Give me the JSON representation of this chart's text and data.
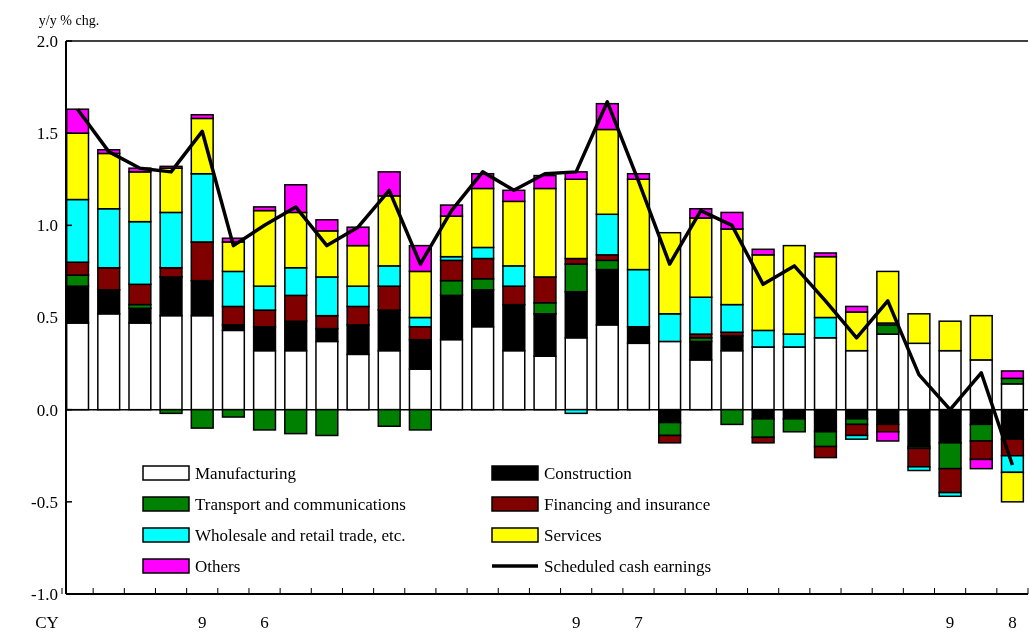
{
  "chart_data": {
    "type": "bar",
    "stacked": true,
    "ylabel": "y/y % chg.",
    "categories": [
      null,
      null,
      null,
      null,
      "9",
      null,
      "6",
      null,
      null,
      null,
      null,
      null,
      null,
      null,
      null,
      null,
      "9",
      null,
      "7",
      null,
      null,
      null,
      null,
      null,
      null,
      null,
      null,
      null,
      "9",
      null,
      "8"
    ],
    "series": [
      {
        "name": "Manufacturing",
        "color": "#ffffff",
        "values": [
          0.47,
          0.52,
          0.47,
          0.51,
          0.51,
          0.43,
          0.32,
          0.32,
          0.37,
          0.3,
          0.32,
          0.22,
          0.38,
          0.45,
          0.32,
          0.29,
          0.39,
          0.46,
          0.36,
          0.37,
          0.27,
          0.32,
          0.34,
          0.34,
          0.39,
          0.32,
          0.41,
          0.36,
          0.32,
          0.27,
          0.14
        ]
      },
      {
        "name": "Construction",
        "color": "#000000",
        "values": [
          0.2,
          0.13,
          0.08,
          0.21,
          0.19,
          0.03,
          0.13,
          0.16,
          0.07,
          0.16,
          0.22,
          0.16,
          0.24,
          0.2,
          0.25,
          0.23,
          0.25,
          0.3,
          0.09,
          -0.07,
          0.1,
          0.08,
          -0.05,
          -0.05,
          -0.12,
          -0.05,
          -0.08,
          -0.2,
          -0.18,
          -0.08,
          -0.16
        ]
      },
      {
        "name": "Transport and communications",
        "color": "#008000",
        "values": [
          0.06,
          0,
          0.02,
          -0.02,
          -0.1,
          -0.04,
          -0.11,
          -0.13,
          -0.14,
          0,
          -0.09,
          -0.11,
          0.08,
          0.06,
          0,
          0.06,
          0.15,
          0.05,
          0,
          -0.07,
          0.02,
          -0.08,
          -0.1,
          -0.07,
          -0.08,
          -0.03,
          0.05,
          -0.01,
          -0.14,
          -0.09,
          0.03
        ]
      },
      {
        "name": "Financing and insurance",
        "color": "#800000",
        "values": [
          0.07,
          0.12,
          0.11,
          0.05,
          0.21,
          0.1,
          0.09,
          0.14,
          0.07,
          0.1,
          0.13,
          0.07,
          0.11,
          0.11,
          0.1,
          0.14,
          0.03,
          0.03,
          0,
          -0.04,
          0.02,
          0.02,
          -0.03,
          0,
          -0.06,
          -0.06,
          -0.04,
          -0.1,
          -0.13,
          -0.1,
          -0.09
        ]
      },
      {
        "name": "Wholesale and retail trade, etc.",
        "color": "#00ffff",
        "values": [
          0.34,
          0.32,
          0.34,
          0.3,
          0.37,
          0.19,
          0.13,
          0.15,
          0.21,
          0.11,
          0.11,
          0.05,
          0.02,
          0.06,
          0.11,
          0,
          -0.02,
          0.22,
          0.31,
          0.15,
          0.2,
          0.15,
          0.09,
          0.07,
          0.11,
          -0.02,
          0.01,
          -0.02,
          -0.02,
          0,
          -0.09
        ]
      },
      {
        "name": "Services",
        "color": "#ffff00",
        "values": [
          0.36,
          0.3,
          0.27,
          0.24,
          0.3,
          0.16,
          0.41,
          0.3,
          0.25,
          0.22,
          0.38,
          0.25,
          0.22,
          0.32,
          0.35,
          0.48,
          0.43,
          0.46,
          0.49,
          0.44,
          0.43,
          0.41,
          0.41,
          0.48,
          0.33,
          0.21,
          0.28,
          0.16,
          0.16,
          0.24,
          -0.16
        ]
      },
      {
        "name": "Others",
        "color": "#ff00ff",
        "values": [
          0.13,
          0.02,
          0.02,
          0.01,
          0.02,
          0.02,
          0.02,
          0.15,
          0.06,
          0.1,
          0.13,
          0.14,
          0.06,
          0.08,
          0.06,
          0.07,
          0.04,
          0.14,
          0.03,
          0,
          0.05,
          0.09,
          0.03,
          0,
          0.02,
          0.03,
          -0.05,
          0,
          0,
          -0.05,
          0.04
        ]
      },
      {
        "name": "Scheduled cash earnings",
        "type": "line",
        "color": "#000000",
        "values": [
          1.63,
          1.4,
          1.31,
          1.29,
          1.51,
          0.89,
          1.0,
          1.1,
          0.89,
          0.99,
          1.19,
          0.79,
          1.08,
          1.29,
          1.19,
          1.28,
          1.29,
          1.67,
          1.24,
          0.79,
          1.08,
          1.0,
          0.68,
          0.78,
          0.59,
          0.39,
          0.59,
          0.19,
          0.0,
          0.2,
          -0.3
        ]
      }
    ],
    "ylim": [
      -1.0,
      2.0
    ],
    "yticks": [
      {
        "value": -1.0,
        "label": "-1.0"
      },
      {
        "value": -0.5,
        "label": "-0.5"
      },
      {
        "value": 0,
        "label": "0.0"
      },
      {
        "value": 0.5,
        "label": "0.5"
      },
      {
        "value": 1.0,
        "label": "1.0"
      },
      {
        "value": 1.5,
        "label": "1.5"
      },
      {
        "value": 2.0,
        "label": "2.0"
      }
    ],
    "legend": "bottom left",
    "annotations": [
      "CY"
    ]
  }
}
